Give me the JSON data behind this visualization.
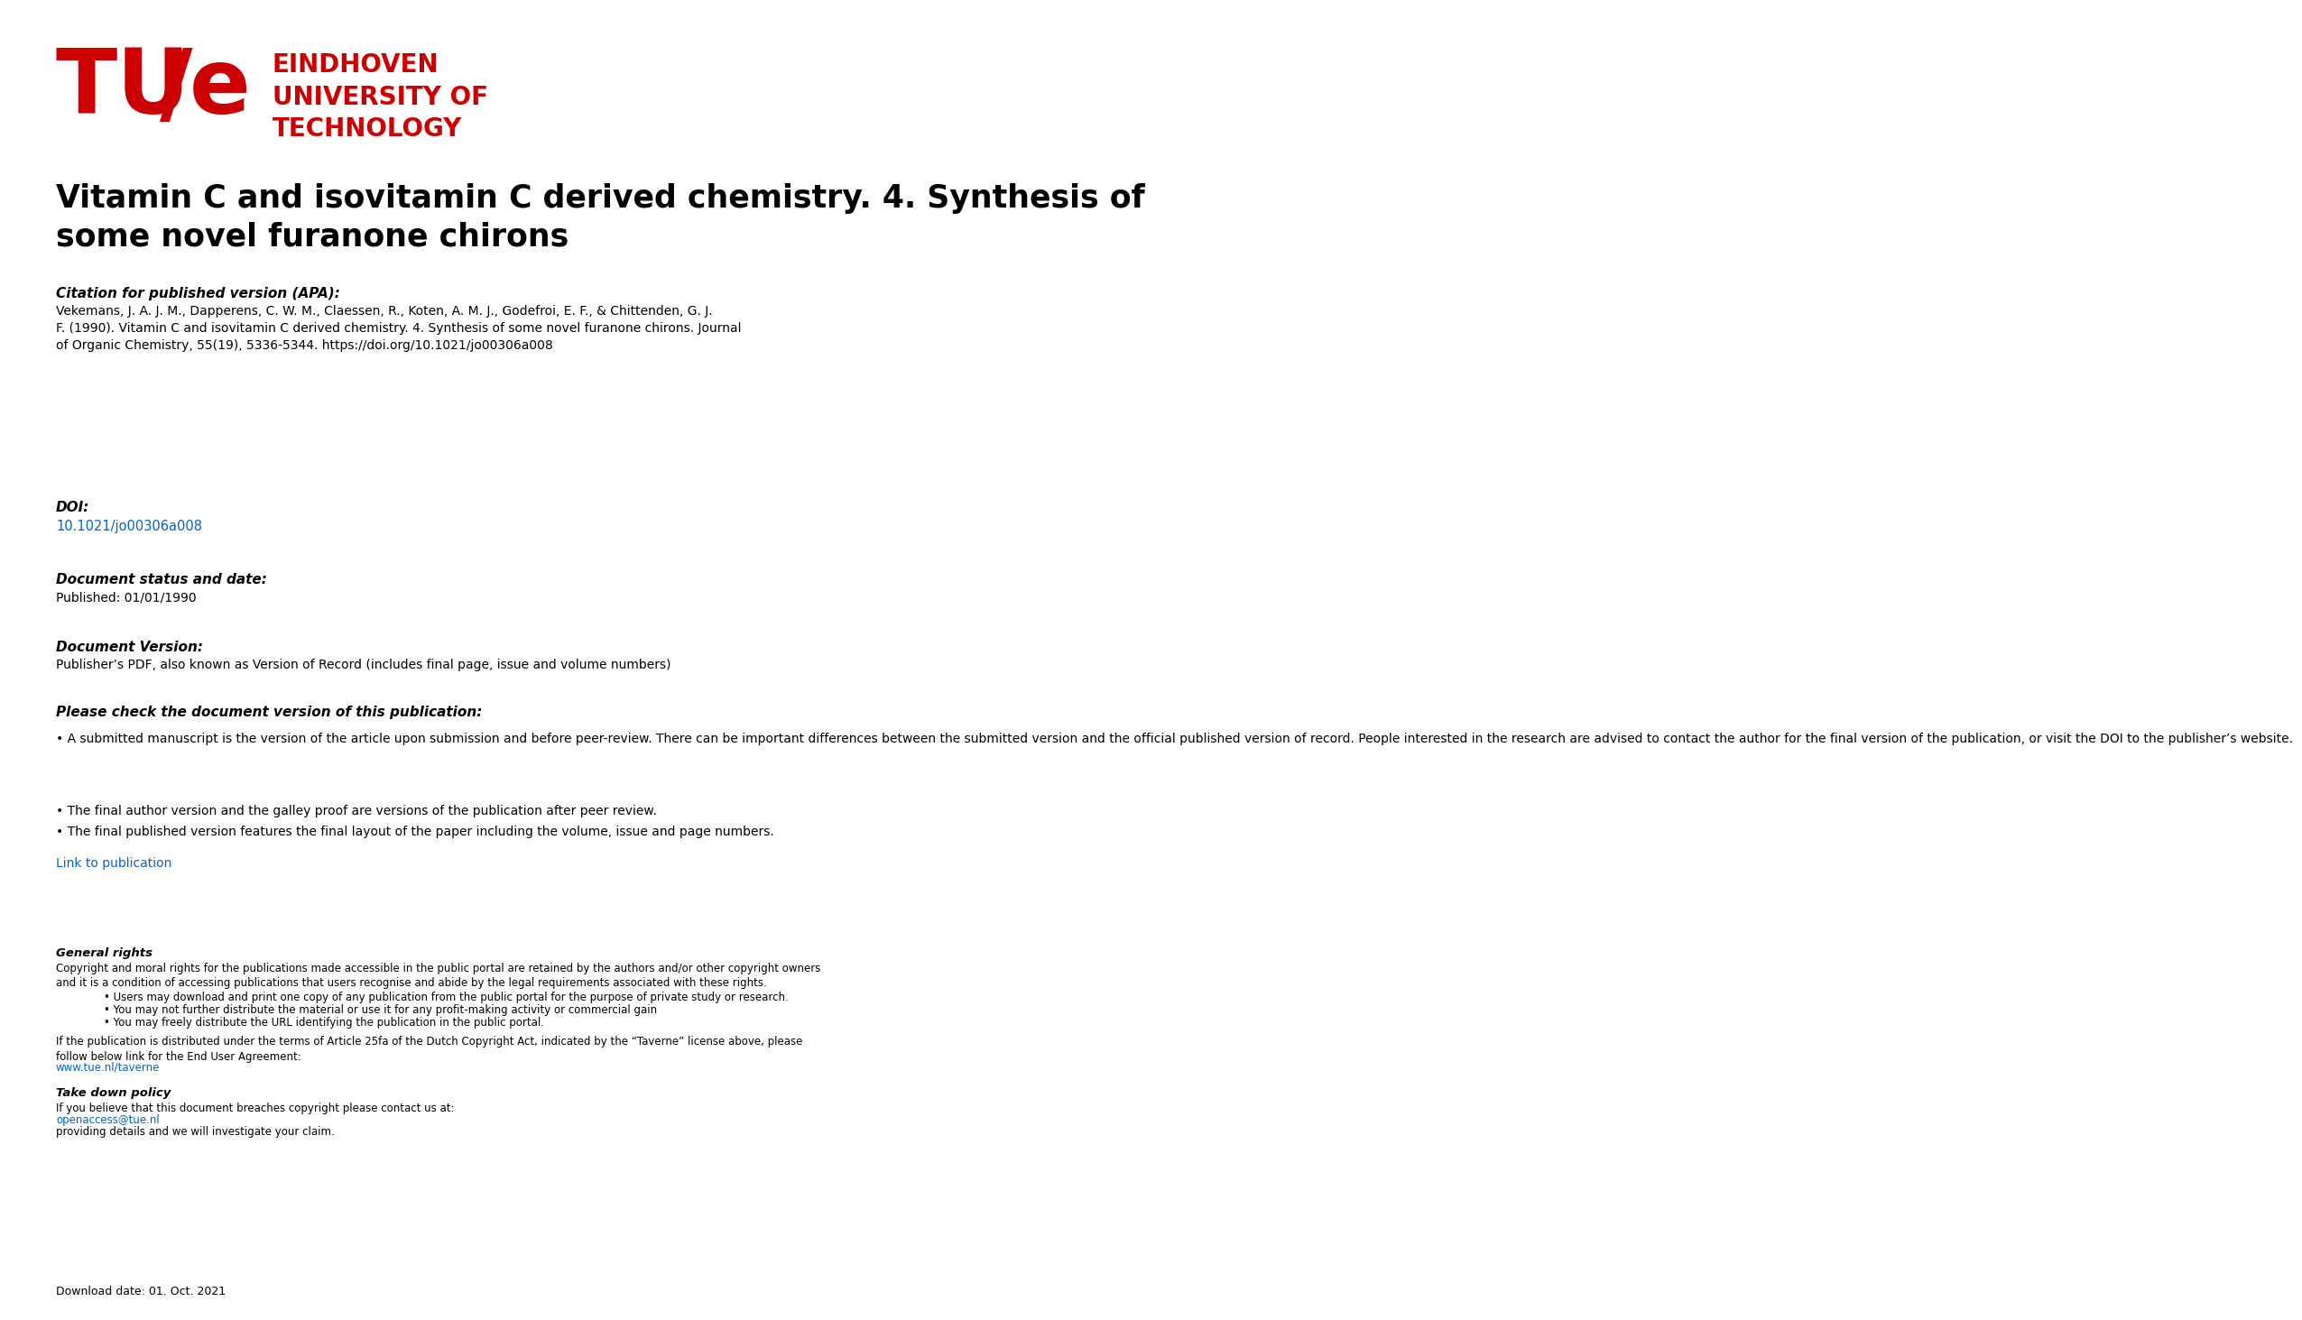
{
  "background_color": "#ffffff",
  "red_color": "#cc0000",
  "link_color": "#0563c1",
  "text_color": "#000000",
  "title": "Vitamin C and isovitamin C derived chemistry. 4. Synthesis of\nsome novel furanone chirons",
  "citation_label": "Citation for published version (APA):",
  "citation_text": "Vekemans, J. A. J. M., Dapperens, C. W. M., Claessen, R., Koten, A. M. J., Godefroi, E. F., & Chittenden, G. J.\nF. (1990). Vitamin C and isovitamin C derived chemistry. 4. Synthesis of some novel furanone chirons. Journal\nof Organic Chemistry, 55(19), 5336-5344. https://doi.org/10.1021/jo00306a008",
  "doi_label": "DOI:",
  "doi_link": "10.1021/jo00306a008",
  "doc_status_label": "Document status and date:",
  "doc_status_text": "Published: 01/01/1990",
  "doc_version_label": "Document Version:",
  "doc_version_text": "Publisher’s PDF, also known as Version of Record (includes final page, issue and volume numbers)",
  "please_check_label": "Please check the document version of this publication:",
  "please_check_text1": "• A submitted manuscript is the version of the article upon submission and before peer-review. There can be important differences between the submitted version and the official published version of record. People interested in the research are advised to contact the author for the final version of the publication, or visit the DOI to the publisher’s website.",
  "please_check_text2": "• The final author version and the galley proof are versions of the publication after peer review.",
  "please_check_text3": "• The final published version features the final layout of the paper including the volume, issue and page numbers.",
  "link_to_pub": "Link to publication",
  "general_rights_label": "General rights",
  "general_rights_text": "Copyright and moral rights for the publications made accessible in the public portal are retained by the authors and/or other copyright owners\nand it is a condition of accessing publications that users recognise and abide by the legal requirements associated with these rights.",
  "bullet_text1": "• Users may download and print one copy of any publication from the public portal for the purpose of private study or research.",
  "bullet_text2": "• You may not further distribute the material or use it for any profit-making activity or commercial gain",
  "bullet_text3": "• You may freely distribute the URL identifying the publication in the public portal.",
  "taverne_text": "If the publication is distributed under the terms of Article 25fa of the Dutch Copyright Act, indicated by the “Taverne” license above, please\nfollow below link for the End User Agreement:",
  "taverne_link": "www.tue.nl/taverne",
  "takedown_label": "Take down policy",
  "takedown_text": "If you believe that this document breaches copyright please contact us at:",
  "takedown_link": "openaccess@tue.nl",
  "takedown_text2": "providing details and we will investigate your claim.",
  "download_date": "Download date: 01. Oct. 2021",
  "logo_tu": "TU",
  "logo_slash": "/",
  "logo_e": "e",
  "logo_line1": "EINDHOVEN",
  "logo_line2": "UNIVERSITY OF",
  "logo_line3": "TECHNOLOGY"
}
